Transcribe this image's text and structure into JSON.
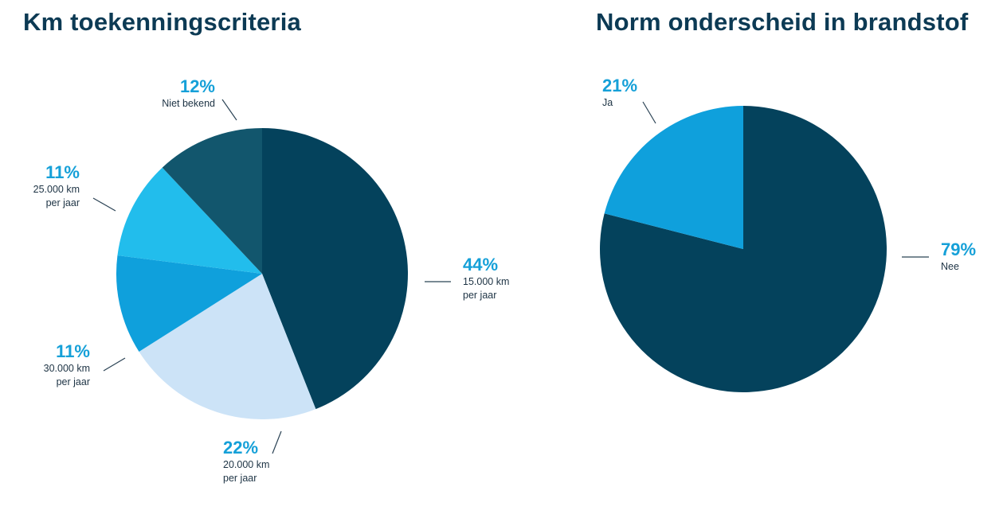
{
  "colors": {
    "title": "#0c3a54",
    "percent": "#15a0d8",
    "label": "#1d3344"
  },
  "chart_data": [
    {
      "type": "pie",
      "title": "Km toekenningscriteria",
      "slices": [
        {
          "label": "15.000 km per jaar",
          "label_lines": [
            "15.000 km",
            "per jaar"
          ],
          "value": 44,
          "display": "44%",
          "color": "#04425c"
        },
        {
          "label": "20.000 km per jaar",
          "label_lines": [
            "20.000 km",
            "per jaar"
          ],
          "value": 22,
          "display": "22%",
          "color": "#cce3f7"
        },
        {
          "label": "30.000 km per jaar",
          "label_lines": [
            "30.000 km",
            "per jaar"
          ],
          "value": 11,
          "display": "11%",
          "color": "#0fa0dc"
        },
        {
          "label": "25.000 km per jaar",
          "label_lines": [
            "25.000 km",
            "per jaar"
          ],
          "value": 11,
          "display": "11%",
          "color": "#22bdec"
        },
        {
          "label": "Niet bekend",
          "label_lines": [
            "Niet bekend"
          ],
          "value": 12,
          "display": "12%",
          "color": "#12566d"
        }
      ]
    },
    {
      "type": "pie",
      "title": "Norm onderscheid in brandstof",
      "slices": [
        {
          "label": "Nee",
          "label_lines": [
            "Nee"
          ],
          "value": 79,
          "display": "79%",
          "color": "#04425c"
        },
        {
          "label": "Ja",
          "label_lines": [
            "Ja"
          ],
          "value": 21,
          "display": "21%",
          "color": "#0fa0dc"
        }
      ]
    }
  ]
}
